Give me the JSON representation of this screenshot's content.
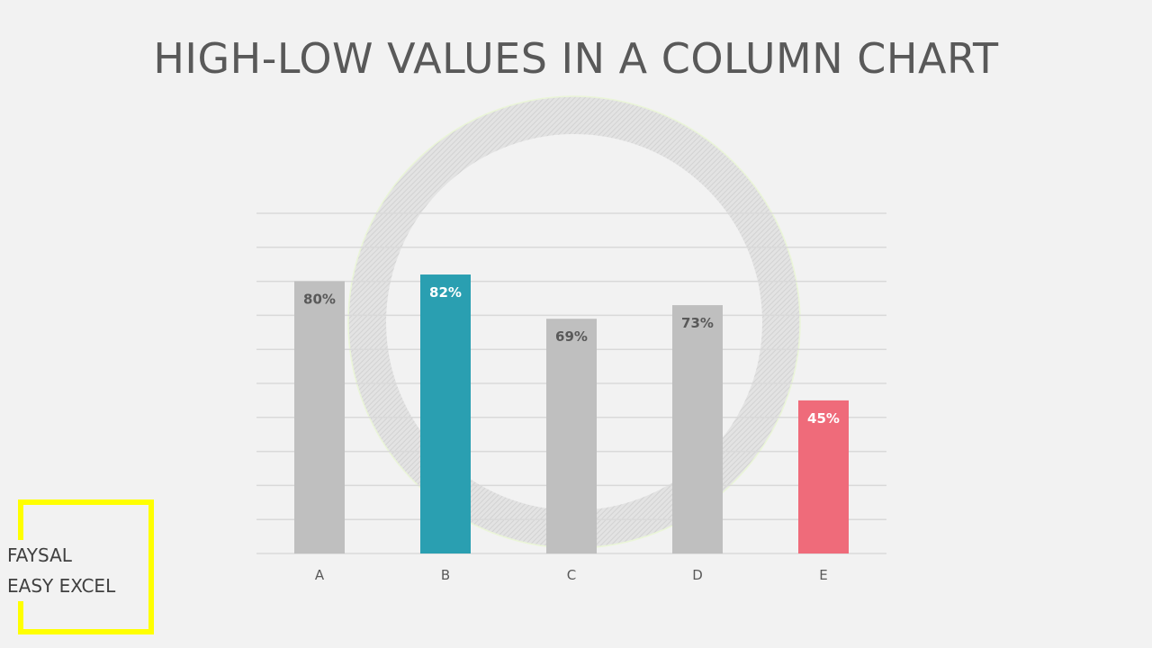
{
  "page": {
    "title": "HIGH-LOW VALUES IN A COLUMN CHART"
  },
  "branding": {
    "line1": "FAYSAL",
    "line2": "EASY EXCEL",
    "frame_color": "#ffff00"
  },
  "chart_data": {
    "type": "bar",
    "title": "HIGH-LOW VALUES IN A COLUMN CHART",
    "xlabel": "",
    "ylabel": "",
    "categories": [
      "A",
      "B",
      "C",
      "D",
      "E"
    ],
    "values": [
      80,
      82,
      69,
      73,
      45
    ],
    "data_labels": [
      "80%",
      "82%",
      "69%",
      "73%",
      "45%"
    ],
    "ylim": [
      0,
      100
    ],
    "grid": true,
    "legend": "none",
    "colors": {
      "default": "#bfbfbf",
      "high": "#2a9fb1",
      "low": "#ef6b7a",
      "default_label": "#595959",
      "highlight_label": "#ffffff",
      "gridline": "#d9d9d9",
      "axis_label": "#595959",
      "ring": "#d6d6d6"
    },
    "highlight": {
      "high": "B",
      "low": "E"
    }
  }
}
